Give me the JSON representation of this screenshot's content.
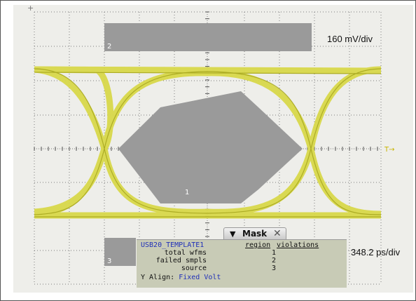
{
  "scale": {
    "vertical": "160 mV/div",
    "horizontal": "348.2 ps/div"
  },
  "regions": {
    "top": "2",
    "center": "1",
    "bottom": "3"
  },
  "marker": "T→",
  "mask_panel": {
    "tab_title": "Mask",
    "template": "USB20_TEMPLATE1",
    "headers": {
      "region": "region",
      "violations": "violations"
    },
    "rows": [
      {
        "label": "total wfms",
        "region": "1"
      },
      {
        "label": "failed smpls",
        "region": "2"
      },
      {
        "label": "source",
        "region": "3"
      }
    ],
    "y_align_label": "Y Align:",
    "y_align_value": "Fixed Volt"
  },
  "colors": {
    "trace": "#d8d84a",
    "trace_dark": "#a8a820",
    "mask": "#9a9a9a",
    "grid": "#7c7c7c",
    "background": "#eeeeea"
  }
}
